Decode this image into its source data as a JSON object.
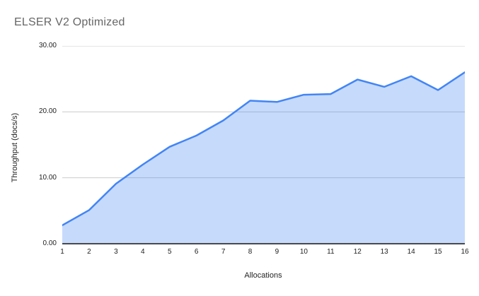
{
  "chart_data": {
    "type": "area",
    "title": "ELSER V2 Optimized",
    "xlabel": "Allocations",
    "ylabel": "Throughput (docs/s)",
    "x": [
      1,
      2,
      3,
      4,
      5,
      6,
      7,
      8,
      9,
      10,
      11,
      12,
      13,
      14,
      15,
      16
    ],
    "values": [
      2.8,
      5.1,
      9.1,
      12.0,
      14.7,
      16.4,
      18.7,
      21.7,
      21.5,
      22.6,
      22.7,
      24.9,
      23.8,
      25.4,
      23.3,
      26.0
    ],
    "ylim": [
      0,
      30
    ],
    "y_tick_values": [
      0,
      10,
      20,
      30
    ],
    "y_tick_labels": [
      "0.00",
      "10.00",
      "20.00",
      "30.00"
    ],
    "x_tick_labels": [
      "1",
      "2",
      "3",
      "4",
      "5",
      "6",
      "7",
      "8",
      "9",
      "10",
      "11",
      "12",
      "13",
      "14",
      "15",
      "16"
    ],
    "grid": true,
    "legend": "none",
    "colors": {
      "line": "#4285f4",
      "fill": "rgba(66,133,244,0.30)",
      "grid": "#cccccc",
      "axis_line": "#333333",
      "title": "#666666",
      "tick": "#222222",
      "axis_title": "#222222"
    }
  }
}
